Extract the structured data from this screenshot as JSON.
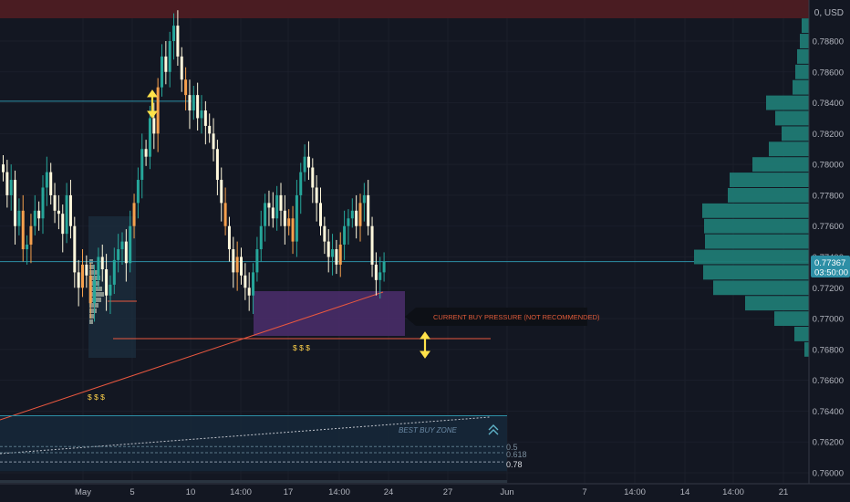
{
  "currency_label": "0, USD",
  "price_tag": "0.77367",
  "countdown_tag": "03:50:00",
  "callout_text": "CURRENT BUY PRESSURE (NOT RECOMMENDED)",
  "best_buy_zone_label": "BEST BUY ZONE",
  "dollar_marks": [
    "$ $ $",
    "$ $ $"
  ],
  "fib_labels": [
    "0.5",
    "0.618",
    "0.78"
  ],
  "colors": {
    "background": "#131722",
    "up": "#26a69a",
    "down": "#fff8dc",
    "highlight": "#f6a04d",
    "volume_profile": "#1f7a74",
    "support_line": "#e9573f",
    "horizontal_line": "#2d8fa6",
    "arrow": "#ffe24a",
    "purple_zone": "#4c2e6c",
    "top_band": "#4a1c22",
    "best_buy_zone": "#16283a"
  },
  "chart_data": {
    "type": "candlestick",
    "y_axis": {
      "min": 0.7585,
      "max": 0.7915,
      "ticks": [
        "0.78800",
        "0.78600",
        "0.78400",
        "0.78200",
        "0.78000",
        "0.77800",
        "0.77600",
        "0.77400",
        "0.77200",
        "0.77000",
        "0.76800",
        "0.76600",
        "0.76400",
        "0.76200",
        "0.76000"
      ],
      "tick_values": [
        0.788,
        0.786,
        0.784,
        0.782,
        0.78,
        0.778,
        0.776,
        0.774,
        0.772,
        0.77,
        0.768,
        0.766,
        0.764,
        0.762,
        0.76
      ]
    },
    "x_axis_labels": [
      "May",
      "5",
      "10",
      "14:00",
      "17",
      "14:00",
      "24",
      "27",
      "Jun",
      "7",
      "14:00",
      "14",
      "14:00",
      "21"
    ],
    "current_price": 0.77367,
    "levels": {
      "horizontal_line_1": 0.7841,
      "horizontal_line_2": 0.7737,
      "support": 0.7687,
      "fib_0_5": 0.7617,
      "fib_0_618": 0.7613,
      "fib_0_78": 0.7607,
      "best_buy_zone_top": 0.7637,
      "best_buy_zone_bottom": 0.7601
    },
    "volume_profile": [
      {
        "price": 0.789,
        "size": 8
      },
      {
        "price": 0.788,
        "size": 10
      },
      {
        "price": 0.787,
        "size": 13
      },
      {
        "price": 0.786,
        "size": 15
      },
      {
        "price": 0.785,
        "size": 18
      },
      {
        "price": 0.784,
        "size": 47
      },
      {
        "price": 0.783,
        "size": 37
      },
      {
        "price": 0.782,
        "size": 30
      },
      {
        "price": 0.781,
        "size": 44
      },
      {
        "price": 0.78,
        "size": 62
      },
      {
        "price": 0.779,
        "size": 87
      },
      {
        "price": 0.778,
        "size": 89
      },
      {
        "price": 0.777,
        "size": 117
      },
      {
        "price": 0.776,
        "size": 115
      },
      {
        "price": 0.775,
        "size": 114
      },
      {
        "price": 0.774,
        "size": 126
      },
      {
        "price": 0.773,
        "size": 116
      },
      {
        "price": 0.772,
        "size": 105
      },
      {
        "price": 0.771,
        "size": 70
      },
      {
        "price": 0.77,
        "size": 38
      },
      {
        "price": 0.769,
        "size": 16
      },
      {
        "price": 0.768,
        "size": 5
      }
    ]
  }
}
